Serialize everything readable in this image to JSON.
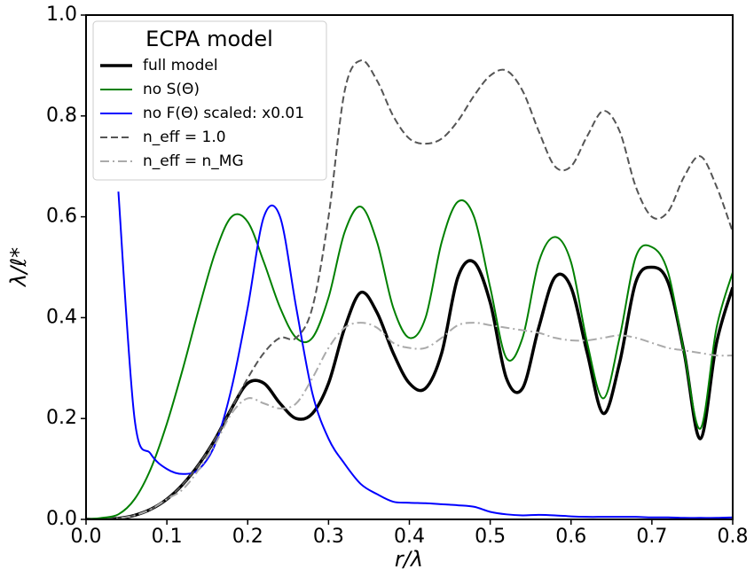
{
  "chart_data": {
    "type": "line",
    "xlabel": "r/λ",
    "ylabel": "λ/ℓ*",
    "legend_title": "ECPA model",
    "legend": "upper left",
    "xlim": [
      0,
      0.8
    ],
    "ylim": [
      0,
      1
    ],
    "xticks": [
      {
        "value": 0,
        "label": "0.0"
      },
      0.1,
      0.2,
      0.3,
      0.4,
      0.5,
      0.6,
      0.7,
      0.8
    ],
    "yticks": [
      {
        "value": 0,
        "label": "0.0"
      },
      0.2,
      0.4,
      0.6,
      0.8,
      {
        "value": 1,
        "label": "1.0"
      }
    ],
    "x": [
      0,
      0.02,
      0.04,
      0.06,
      0.08,
      0.1,
      0.12,
      0.14,
      0.16,
      0.18,
      0.2,
      0.22,
      0.24,
      0.26,
      0.28,
      0.3,
      0.32,
      0.34,
      0.36,
      0.38,
      0.4,
      0.42,
      0.44,
      0.46,
      0.48,
      0.5,
      0.52,
      0.54,
      0.56,
      0.58,
      0.6,
      0.62,
      0.64,
      0.66,
      0.68,
      0.7,
      0.72,
      0.74,
      0.76,
      0.78,
      0.8
    ],
    "series": [
      {
        "name": "full model",
        "color": "#000000",
        "width": 3.5,
        "dash": "solid",
        "values": [
          0,
          0,
          0.002,
          0.008,
          0.02,
          0.04,
          0.07,
          0.11,
          0.16,
          0.22,
          0.27,
          0.27,
          0.23,
          0.2,
          0.21,
          0.27,
          0.38,
          0.45,
          0.41,
          0.33,
          0.27,
          0.26,
          0.33,
          0.48,
          0.51,
          0.43,
          0.28,
          0.26,
          0.38,
          0.48,
          0.46,
          0.33,
          0.21,
          0.31,
          0.47,
          0.5,
          0.47,
          0.33,
          0.16,
          0.35,
          0.46
        ]
      },
      {
        "name": "no S(Θ)",
        "color": "#008000",
        "width": 2,
        "dash": "solid",
        "values": [
          0,
          0.003,
          0.01,
          0.04,
          0.1,
          0.19,
          0.3,
          0.42,
          0.53,
          0.6,
          0.59,
          0.51,
          0.42,
          0.36,
          0.36,
          0.44,
          0.57,
          0.62,
          0.55,
          0.42,
          0.36,
          0.4,
          0.55,
          0.63,
          0.6,
          0.46,
          0.32,
          0.36,
          0.51,
          0.56,
          0.51,
          0.35,
          0.24,
          0.36,
          0.52,
          0.54,
          0.49,
          0.33,
          0.18,
          0.38,
          0.49
        ]
      },
      {
        "name": "no F(Θ) scaled: x0.01",
        "color": "#0000ff",
        "width": 2,
        "dash": "solid",
        "values": [
          null,
          null,
          0.65,
          0.2,
          0.13,
          0.1,
          0.09,
          0.1,
          0.15,
          0.26,
          0.42,
          0.6,
          0.6,
          0.42,
          0.25,
          0.16,
          0.11,
          0.07,
          0.05,
          0.035,
          0.033,
          0.032,
          0.03,
          0.028,
          0.025,
          0.015,
          0.01,
          0.008,
          0.009,
          0.008,
          0.006,
          0.005,
          0.005,
          0.005,
          0.005,
          0.004,
          0.004,
          0.003,
          0.003,
          0.003,
          0.004
        ]
      },
      {
        "name": "n_eff = 1.0",
        "color": "#555555",
        "width": 2,
        "dash": "dashed",
        "values": [
          0,
          0,
          0.002,
          0.008,
          0.02,
          0.04,
          0.07,
          0.11,
          0.16,
          0.22,
          0.28,
          0.33,
          0.36,
          0.36,
          0.42,
          0.6,
          0.85,
          0.91,
          0.87,
          0.8,
          0.755,
          0.745,
          0.755,
          0.79,
          0.84,
          0.88,
          0.89,
          0.85,
          0.77,
          0.7,
          0.7,
          0.76,
          0.81,
          0.77,
          0.66,
          0.6,
          0.61,
          0.68,
          0.72,
          0.66,
          0.57
        ]
      },
      {
        "name": "n_eff = n_MG",
        "color": "#aaaaaa",
        "width": 2,
        "dash": "dashdot",
        "values": [
          0,
          0,
          0.002,
          0.008,
          0.02,
          0.04,
          0.06,
          0.1,
          0.15,
          0.21,
          0.24,
          0.23,
          0.22,
          0.23,
          0.28,
          0.34,
          0.38,
          0.39,
          0.38,
          0.35,
          0.34,
          0.34,
          0.36,
          0.385,
          0.39,
          0.385,
          0.38,
          0.375,
          0.37,
          0.36,
          0.355,
          0.355,
          0.36,
          0.365,
          0.36,
          0.35,
          0.34,
          0.335,
          0.33,
          0.325,
          0.325
        ]
      }
    ]
  }
}
